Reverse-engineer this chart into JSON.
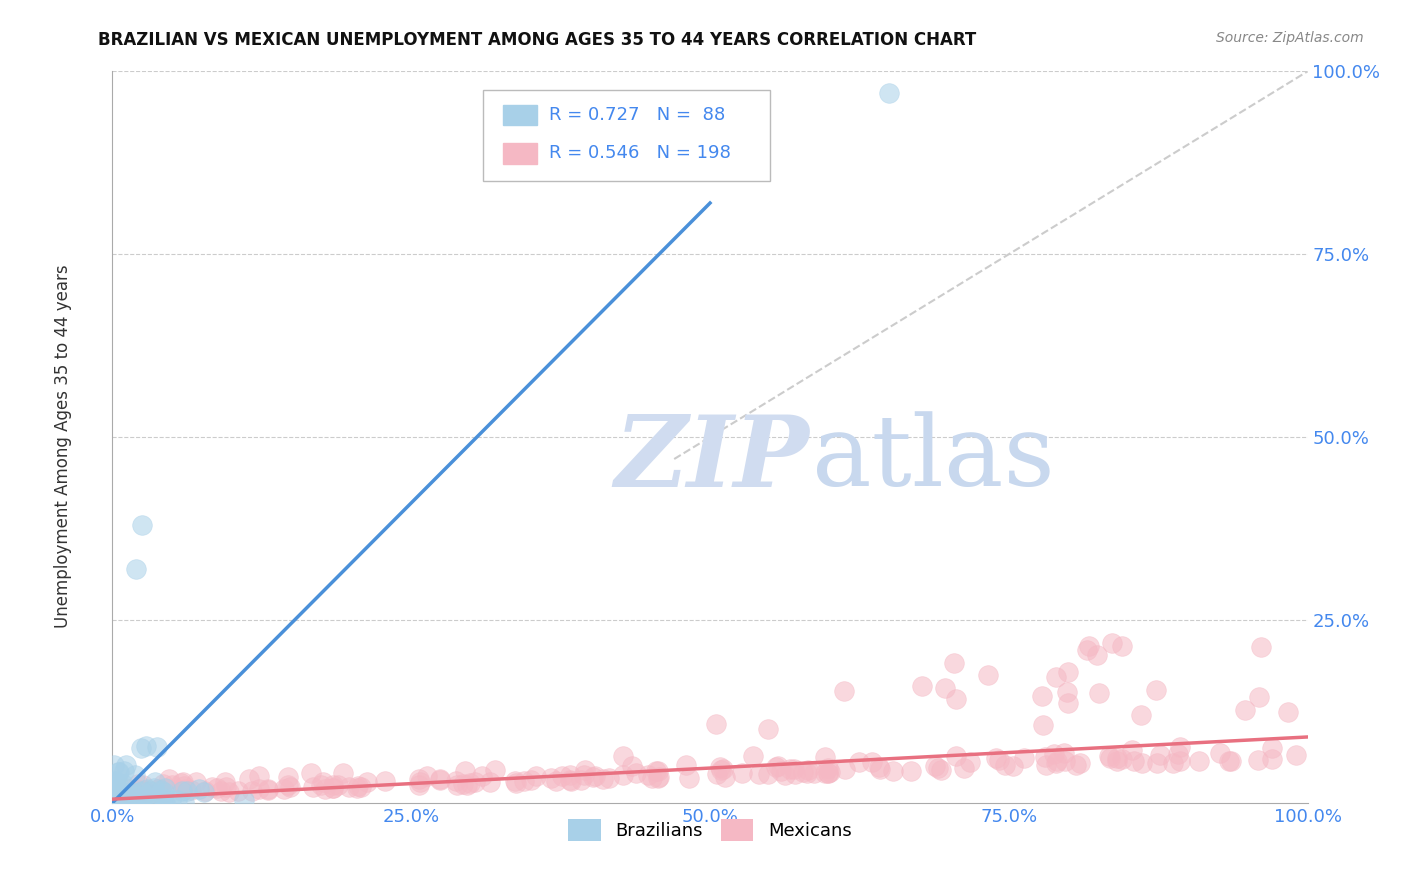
{
  "title": "BRAZILIAN VS MEXICAN UNEMPLOYMENT AMONG AGES 35 TO 44 YEARS CORRELATION CHART",
  "source": "Source: ZipAtlas.com",
  "ylabel": "Unemployment Among Ages 35 to 44 years",
  "watermark": "ZIPAtlas",
  "brazil_R": 0.727,
  "brazil_N": 88,
  "mexico_R": 0.546,
  "mexico_N": 198,
  "brazil_color": "#A8D0E8",
  "mexico_color": "#F5B8C4",
  "brazil_line_color": "#4A90D9",
  "mexico_line_color": "#E87080",
  "ref_line_color": "#CCCCCC",
  "background_color": "#FFFFFF",
  "grid_color": "#CCCCCC",
  "brazil_line_x": [
    0.0,
    0.5
  ],
  "brazil_line_y": [
    0.0,
    0.82
  ],
  "mexico_line_x": [
    0.0,
    1.0
  ],
  "mexico_line_y": [
    0.005,
    0.09
  ],
  "ref_line_x": [
    0.47,
    1.0
  ],
  "ref_line_y": [
    0.47,
    1.0
  ],
  "xlim": [
    0.0,
    1.0
  ],
  "ylim": [
    0.0,
    1.0
  ],
  "xticks": [
    0.0,
    0.25,
    0.5,
    0.75,
    1.0
  ],
  "yticks": [
    0.25,
    0.5,
    0.75,
    1.0
  ],
  "xticklabels": [
    "0.0%",
    "25.0%",
    "50.0%",
    "75.0%",
    "100.0%"
  ],
  "yticklabels": [
    "25.0%",
    "50.0%",
    "75.0%",
    "100.0%"
  ],
  "tick_color": "#4488EE",
  "title_fontsize": 12,
  "source_fontsize": 10
}
